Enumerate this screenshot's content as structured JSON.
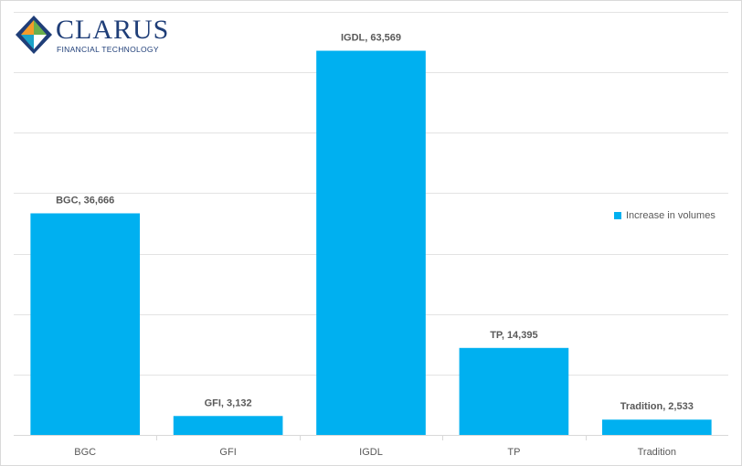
{
  "logo": {
    "name": "CLARUS",
    "tagline": "FINANCIAL TECHNOLOGY",
    "colors": {
      "navy": "#1f3e78",
      "orange": "#f39c2a",
      "green": "#6ab04c",
      "teal": "#1aa3c8"
    }
  },
  "chart_data": {
    "type": "bar",
    "title": "",
    "xlabel": "",
    "ylabel": "",
    "categories": [
      "BGC",
      "GFI",
      "IGDL",
      "TP",
      "Tradition"
    ],
    "series": [
      {
        "name": "Increase in volumes",
        "values": [
          36666,
          3132,
          63569,
          14395,
          2533
        ],
        "data_labels": [
          "BGC, 36,666",
          "GFI, 3,132",
          "IGDL, 63,569",
          "TP, 14,395",
          "Tradition, 2,533"
        ],
        "color": "#00b0f0"
      }
    ],
    "ylim": [
      0,
      70000
    ],
    "y_gridline_step": 10000,
    "y_tick_labels_shown": false,
    "grid": true,
    "legend": "right"
  }
}
